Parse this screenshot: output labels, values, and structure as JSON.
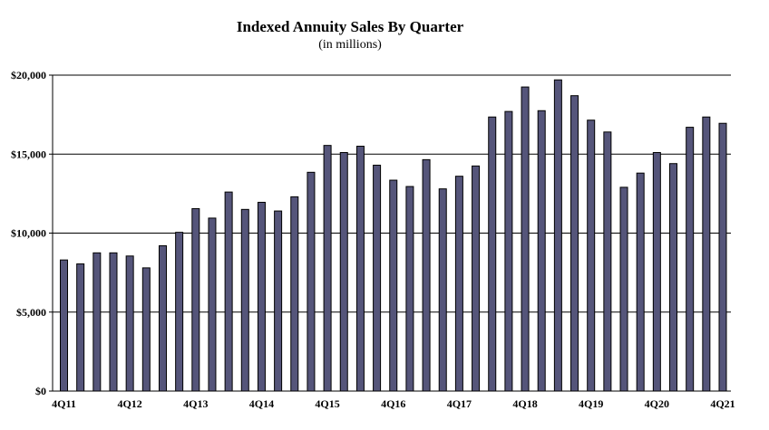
{
  "chart_data": {
    "type": "bar",
    "title": "Indexed Annuity Sales By Quarter",
    "subtitle": "(in millions)",
    "xlabel": "",
    "ylabel": "",
    "ylim": [
      0,
      20000
    ],
    "yticks": [
      0,
      5000,
      10000,
      15000,
      20000
    ],
    "ytick_labels": [
      "$0",
      "$5,000",
      "$10,000",
      "$15,000",
      "$20,000"
    ],
    "grid": true,
    "bar_color": "#55557a",
    "categories": [
      "4Q11",
      "1Q12",
      "2Q12",
      "3Q12",
      "4Q12",
      "1Q13",
      "2Q13",
      "3Q13",
      "4Q13",
      "1Q14",
      "2Q14",
      "3Q14",
      "4Q14",
      "1Q15",
      "2Q15",
      "3Q15",
      "4Q15",
      "1Q16",
      "2Q16",
      "3Q16",
      "4Q16",
      "1Q17",
      "2Q17",
      "3Q17",
      "4Q17",
      "1Q18",
      "2Q18",
      "3Q18",
      "4Q18",
      "1Q19",
      "2Q19",
      "3Q19",
      "4Q19",
      "1Q20",
      "2Q20",
      "3Q20",
      "4Q20",
      "1Q21",
      "2Q21",
      "3Q21",
      "4Q21"
    ],
    "values": [
      8300,
      8050,
      8750,
      8750,
      8550,
      7800,
      9200,
      10050,
      11550,
      10950,
      12600,
      11500,
      11950,
      11400,
      12300,
      13850,
      15550,
      15100,
      15500,
      14300,
      13350,
      12950,
      14650,
      12800,
      13600,
      14250,
      17350,
      17700,
      19250,
      17750,
      19700,
      18700,
      17150,
      16400,
      12900,
      13800,
      15100,
      14400,
      16700,
      17350,
      16950
    ],
    "xtick_labels": [
      {
        "index": 0,
        "label": "4Q11"
      },
      {
        "index": 4,
        "label": "4Q12"
      },
      {
        "index": 8,
        "label": "4Q13"
      },
      {
        "index": 12,
        "label": "4Q14"
      },
      {
        "index": 16,
        "label": "4Q15"
      },
      {
        "index": 20,
        "label": "4Q16"
      },
      {
        "index": 24,
        "label": "4Q17"
      },
      {
        "index": 28,
        "label": "4Q18"
      },
      {
        "index": 32,
        "label": "4Q19"
      },
      {
        "index": 36,
        "label": "4Q20"
      },
      {
        "index": 40,
        "label": "4Q21"
      }
    ]
  }
}
